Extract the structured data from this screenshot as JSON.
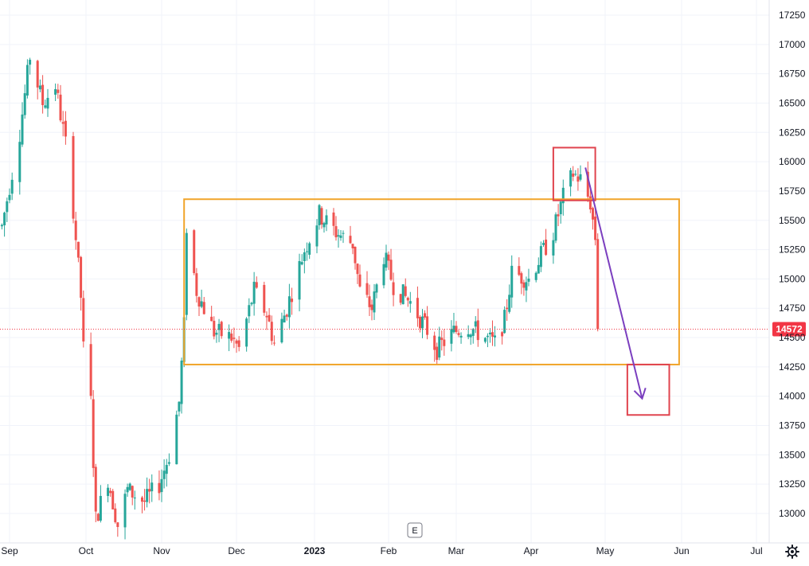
{
  "chart_data": {
    "type": "candlestick",
    "ylim": [
      12800,
      17300
    ],
    "y_ticks": [
      17250,
      17000,
      16750,
      16500,
      16250,
      16000,
      15750,
      15500,
      15250,
      15000,
      14750,
      14500,
      14250,
      14000,
      13750,
      13500,
      13250,
      13000
    ],
    "x_ticks": [
      {
        "label": "Sep",
        "bold": false
      },
      {
        "label": "Oct",
        "bold": false
      },
      {
        "label": "Nov",
        "bold": false
      },
      {
        "label": "Dec",
        "bold": false
      },
      {
        "label": "2023",
        "bold": true
      },
      {
        "label": "Feb",
        "bold": false
      },
      {
        "label": "Mar",
        "bold": false
      },
      {
        "label": "Apr",
        "bold": false
      },
      {
        "label": "May",
        "bold": false
      },
      {
        "label": "Jun",
        "bold": false
      },
      {
        "label": "Jul",
        "bold": false
      }
    ],
    "last_price": 14572,
    "last_price_label": "14572",
    "grid": true,
    "colors": {
      "up": "#26a69a",
      "down": "#ef5350",
      "range_box": "#f0a42a",
      "target_box": "#e0444e",
      "arrow": "#7b3fbf",
      "price_line": "#f23645",
      "grid": "#f0f3fa"
    },
    "annotations": {
      "range_box": {
        "start": "2022-11-10",
        "end": "2023-05-31",
        "high": 15680,
        "low": 14270
      },
      "top_box": {
        "start": "2023-04-10",
        "end": "2023-04-27",
        "high": 16120,
        "low": 15670
      },
      "target_box": {
        "start": "2023-05-10",
        "end": "2023-05-27",
        "high": 14270,
        "low": 13840
      },
      "arrow": {
        "from_date": "2023-04-23",
        "from_price": 15950,
        "to_date": "2023-05-16",
        "to_price": 13980
      }
    },
    "events_badge": "E"
  },
  "ui": {
    "settings_icon": "gear-icon"
  }
}
